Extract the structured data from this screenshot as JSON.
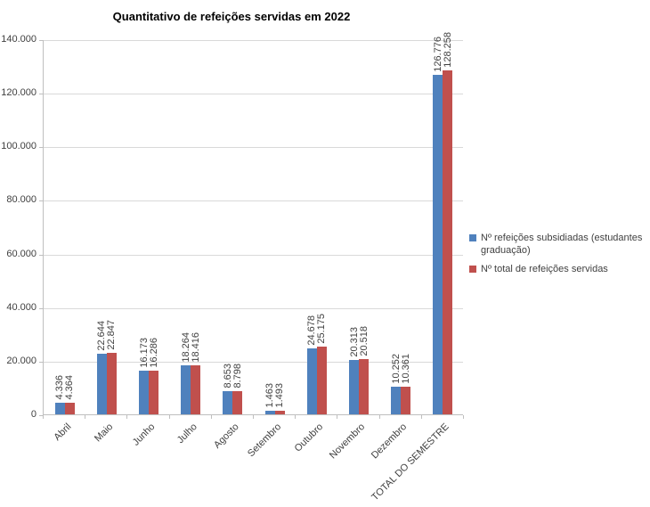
{
  "chart_data": {
    "type": "bar",
    "title": "Quantitativo de refeições servidas em 2022",
    "categories": [
      "Abril",
      "Maio",
      "Junho",
      "Julho",
      "Agosto",
      "Setembro",
      "Outubro",
      "Novembro",
      "Dezembro",
      "TOTAL DO SEMESTRE"
    ],
    "series": [
      {
        "name": "Nº refeições subsidiadas (estudantes graduação)",
        "color": "#4F81BD",
        "values": [
          4336,
          22644,
          16173,
          18264,
          8653,
          1463,
          24678,
          20313,
          10252,
          126776
        ]
      },
      {
        "name": "Nº total de refeições servidas",
        "color": "#C0504D",
        "values": [
          4364,
          22847,
          16286,
          18416,
          8798,
          1493,
          25175,
          20518,
          10361,
          128258
        ]
      }
    ],
    "data_labels": true,
    "data_label_rotation": 90,
    "number_format": "thousands-dot",
    "y_axis": {
      "min": 0,
      "max": 140000,
      "step": 20000,
      "tick_labels": [
        "0",
        "20.000",
        "40.000",
        "60.000",
        "80.000",
        "100.000",
        "120.000",
        "140.000"
      ]
    },
    "grid": true,
    "legend_position": "right"
  }
}
